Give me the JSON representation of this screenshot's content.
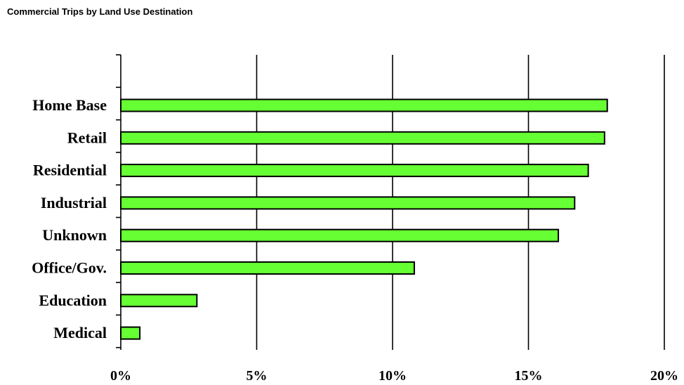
{
  "chart_data": {
    "type": "bar",
    "orientation": "horizontal",
    "title": "Commercial Trips by Land Use Destination",
    "xlabel": "",
    "ylabel": "",
    "categories": [
      "Home Base",
      "Retail",
      "Residential",
      "Industrial",
      "Unknown",
      "Office/Gov.",
      "Education",
      "Medical"
    ],
    "values": [
      17.9,
      17.8,
      17.2,
      16.7,
      16.1,
      10.8,
      2.8,
      0.7
    ],
    "xlim": [
      0,
      20
    ],
    "x_ticks": [
      0,
      5,
      10,
      15,
      20
    ],
    "x_tick_labels": [
      "0%",
      "5%",
      "10%",
      "15%",
      "20%"
    ],
    "grid": "vertical",
    "legend": "none",
    "bar_color": "#66ff33",
    "bar_edge_color": "#000000"
  }
}
